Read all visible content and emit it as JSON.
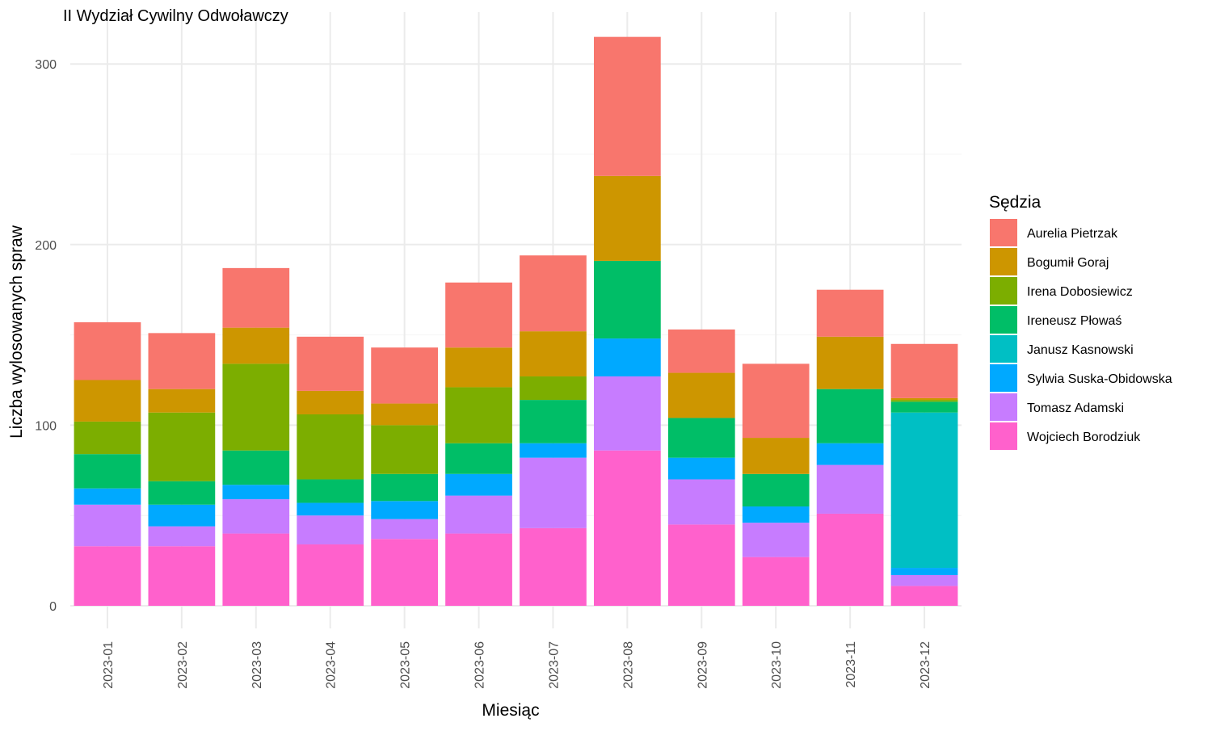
{
  "chart_data": {
    "type": "bar",
    "stacked": true,
    "title": "II Wydział Cywilny Odwoławczy",
    "xlabel": "Miesiąc",
    "ylabel": "Liczba wylosowanych spraw",
    "ylim": [
      0,
      315
    ],
    "y_ticks": [
      0,
      100,
      200,
      300
    ],
    "grid": true,
    "legend": {
      "title": "Sędzia",
      "position": "right"
    },
    "categories": [
      "2023-01",
      "2023-02",
      "2023-03",
      "2023-04",
      "2023-05",
      "2023-06",
      "2023-07",
      "2023-08",
      "2023-09",
      "2023-10",
      "2023-11",
      "2023-12"
    ],
    "stack_order_bottom_to_top": [
      "Wojciech Borodziuk",
      "Tomasz Adamski",
      "Sylwia Suska-Obidowska",
      "Janusz Kasnowski",
      "Ireneusz Płowaś",
      "Irena Dobosiewicz",
      "Bogumił Goraj",
      "Aurelia Pietrzak"
    ],
    "series": [
      {
        "name": "Aurelia Pietrzak",
        "color": "#F8766D",
        "values": [
          32,
          31,
          33,
          30,
          31,
          36,
          42,
          77,
          24,
          41,
          26,
          30
        ]
      },
      {
        "name": "Bogumił Goraj",
        "color": "#CD9600",
        "values": [
          23,
          13,
          20,
          13,
          12,
          22,
          25,
          47,
          25,
          20,
          29,
          1
        ]
      },
      {
        "name": "Irena Dobosiewicz",
        "color": "#7CAE00",
        "values": [
          18,
          38,
          48,
          36,
          27,
          31,
          13,
          0,
          0,
          0,
          0,
          1
        ]
      },
      {
        "name": "Ireneusz Płowaś",
        "color": "#00BE67",
        "values": [
          19,
          13,
          19,
          13,
          15,
          17,
          24,
          43,
          22,
          18,
          30,
          6
        ]
      },
      {
        "name": "Janusz Kasnowski",
        "color": "#00BFC4",
        "values": [
          0,
          0,
          0,
          0,
          0,
          0,
          0,
          0,
          0,
          0,
          0,
          86
        ]
      },
      {
        "name": "Sylwia Suska-Obidowska",
        "color": "#00A9FF",
        "values": [
          9,
          12,
          8,
          7,
          10,
          12,
          8,
          21,
          12,
          9,
          12,
          4
        ]
      },
      {
        "name": "Tomasz Adamski",
        "color": "#C77CFF",
        "values": [
          23,
          11,
          19,
          16,
          11,
          21,
          39,
          41,
          25,
          19,
          27,
          6
        ]
      },
      {
        "name": "Wojciech Borodziuk",
        "color": "#FF61CC",
        "values": [
          33,
          33,
          40,
          34,
          37,
          40,
          43,
          86,
          45,
          27,
          51,
          11
        ]
      }
    ]
  }
}
